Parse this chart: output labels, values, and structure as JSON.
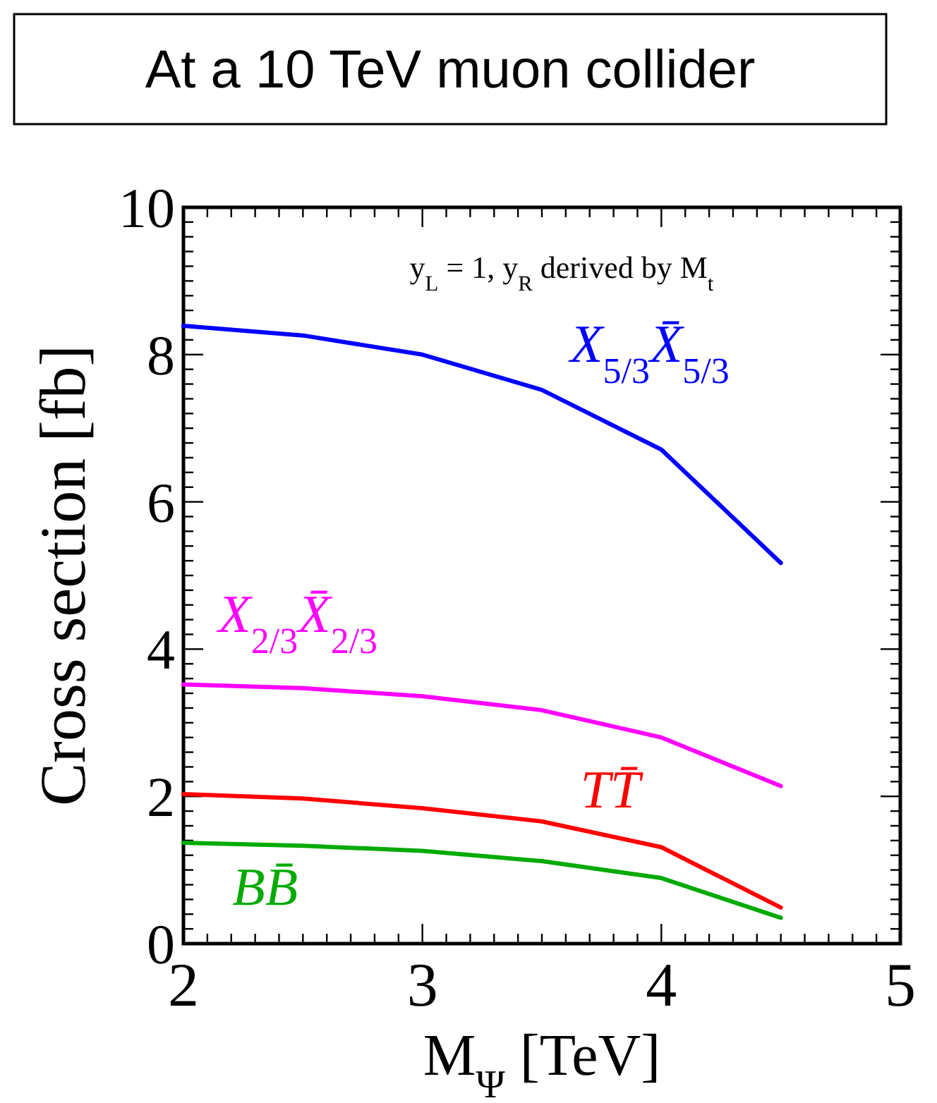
{
  "chart_data": {
    "type": "line",
    "title": "At a 10 TeV muon collider",
    "xlabel": "M$_{Ψ}$ [TeV]",
    "ylabel": "Cross section [fb]",
    "annotations": [
      "y$_{L}$ = 1, y$_{R}$ derived by M$_{t}$"
    ],
    "x": [
      2,
      2.5,
      3,
      3.5,
      4,
      4.5
    ],
    "series": [
      {
        "name": "X$_{5/3}$X̄$_{5/3}$",
        "color": "#0000ff",
        "values": [
          8.39,
          8.26,
          8.0,
          7.52,
          6.71,
          5.17
        ]
      },
      {
        "name": "X$_{2/3}$X̄$_{2/3}$",
        "color": "#ff00ff",
        "values": [
          3.52,
          3.47,
          3.36,
          3.17,
          2.8,
          2.14
        ]
      },
      {
        "name": "TT̄",
        "color": "#ff0000",
        "values": [
          2.03,
          1.97,
          1.84,
          1.66,
          1.31,
          0.49
        ]
      },
      {
        "name": "BB̄",
        "color": "#00aa00",
        "values": [
          1.37,
          1.33,
          1.26,
          1.12,
          0.89,
          0.35
        ]
      }
    ],
    "xlim": [
      2,
      5
    ],
    "ylim": [
      0,
      10
    ],
    "xticks": [
      2,
      {
        "value": 2.1,
        "label": null
      },
      {
        "value": 2.2,
        "label": null
      },
      {
        "value": 2.3,
        "label": null
      },
      {
        "value": 2.4,
        "label": null
      },
      {
        "value": 2.5,
        "label": null
      },
      {
        "value": 2.6,
        "label": null
      },
      {
        "value": 2.7,
        "label": null
      },
      {
        "value": 2.8,
        "label": null
      },
      {
        "value": 2.9,
        "label": null
      },
      3,
      {
        "value": 3.1,
        "label": null
      },
      {
        "value": 3.2,
        "label": null
      },
      {
        "value": 3.3,
        "label": null
      },
      {
        "value": 3.4,
        "label": null
      },
      {
        "value": 3.5,
        "label": null
      },
      {
        "value": 3.6,
        "label": null
      },
      {
        "value": 3.7,
        "label": null
      },
      {
        "value": 3.8,
        "label": null
      },
      {
        "value": 3.9,
        "label": null
      },
      4,
      {
        "value": 4.1,
        "label": null
      },
      {
        "value": 4.2,
        "label": null
      },
      {
        "value": 4.3,
        "label": null
      },
      {
        "value": 4.4,
        "label": null
      },
      {
        "value": 4.5,
        "label": null
      },
      {
        "value": 4.6,
        "label": null
      },
      {
        "value": 4.7,
        "label": null
      },
      {
        "value": 4.8,
        "label": null
      },
      {
        "value": 4.9,
        "label": null
      },
      5
    ],
    "yticks": [
      0,
      {
        "value": 0.2,
        "label": null
      },
      {
        "value": 0.4,
        "label": null
      },
      {
        "value": 0.6,
        "label": null
      },
      {
        "value": 0.8,
        "label": null
      },
      {
        "value": 1,
        "label": null
      },
      {
        "value": 1.2,
        "label": null
      },
      {
        "value": 1.4,
        "label": null
      },
      {
        "value": 1.6,
        "label": null
      },
      {
        "value": 1.8,
        "label": null
      },
      2,
      {
        "value": 2.2,
        "label": null
      },
      {
        "value": 2.4,
        "label": null
      },
      {
        "value": 2.6,
        "label": null
      },
      {
        "value": 2.8,
        "label": null
      },
      {
        "value": 3,
        "label": null
      },
      {
        "value": 3.2,
        "label": null
      },
      {
        "value": 3.4,
        "label": null
      },
      {
        "value": 3.6,
        "label": null
      },
      {
        "value": 3.8,
        "label": null
      },
      4,
      {
        "value": 4.2,
        "label": null
      },
      {
        "value": 4.4,
        "label": null
      },
      {
        "value": 4.6,
        "label": null
      },
      {
        "value": 4.8,
        "label": null
      },
      {
        "value": 5,
        "label": null
      },
      {
        "value": 5.2,
        "label": null
      },
      {
        "value": 5.4,
        "label": null
      },
      {
        "value": 5.6,
        "label": null
      },
      {
        "value": 5.8,
        "label": null
      },
      6,
      {
        "value": 6.2,
        "label": null
      },
      {
        "value": 6.4,
        "label": null
      },
      {
        "value": 6.6,
        "label": null
      },
      {
        "value": 6.8,
        "label": null
      },
      {
        "value": 7,
        "label": null
      },
      {
        "value": 7.2,
        "label": null
      },
      {
        "value": 7.4,
        "label": null
      },
      {
        "value": 7.6,
        "label": null
      },
      {
        "value": 7.8,
        "label": null
      },
      8,
      {
        "value": 8.2,
        "label": null
      },
      {
        "value": 8.4,
        "label": null
      },
      {
        "value": 8.6,
        "label": null
      },
      {
        "value": 8.8,
        "label": null
      },
      {
        "value": 9,
        "label": null
      },
      {
        "value": 9.2,
        "label": null
      },
      {
        "value": 9.4,
        "label": null
      },
      {
        "value": 9.6,
        "label": null
      },
      {
        "value": 9.8,
        "label": null
      },
      10
    ],
    "grid": false,
    "marker": "none",
    "line_style": "solid"
  }
}
